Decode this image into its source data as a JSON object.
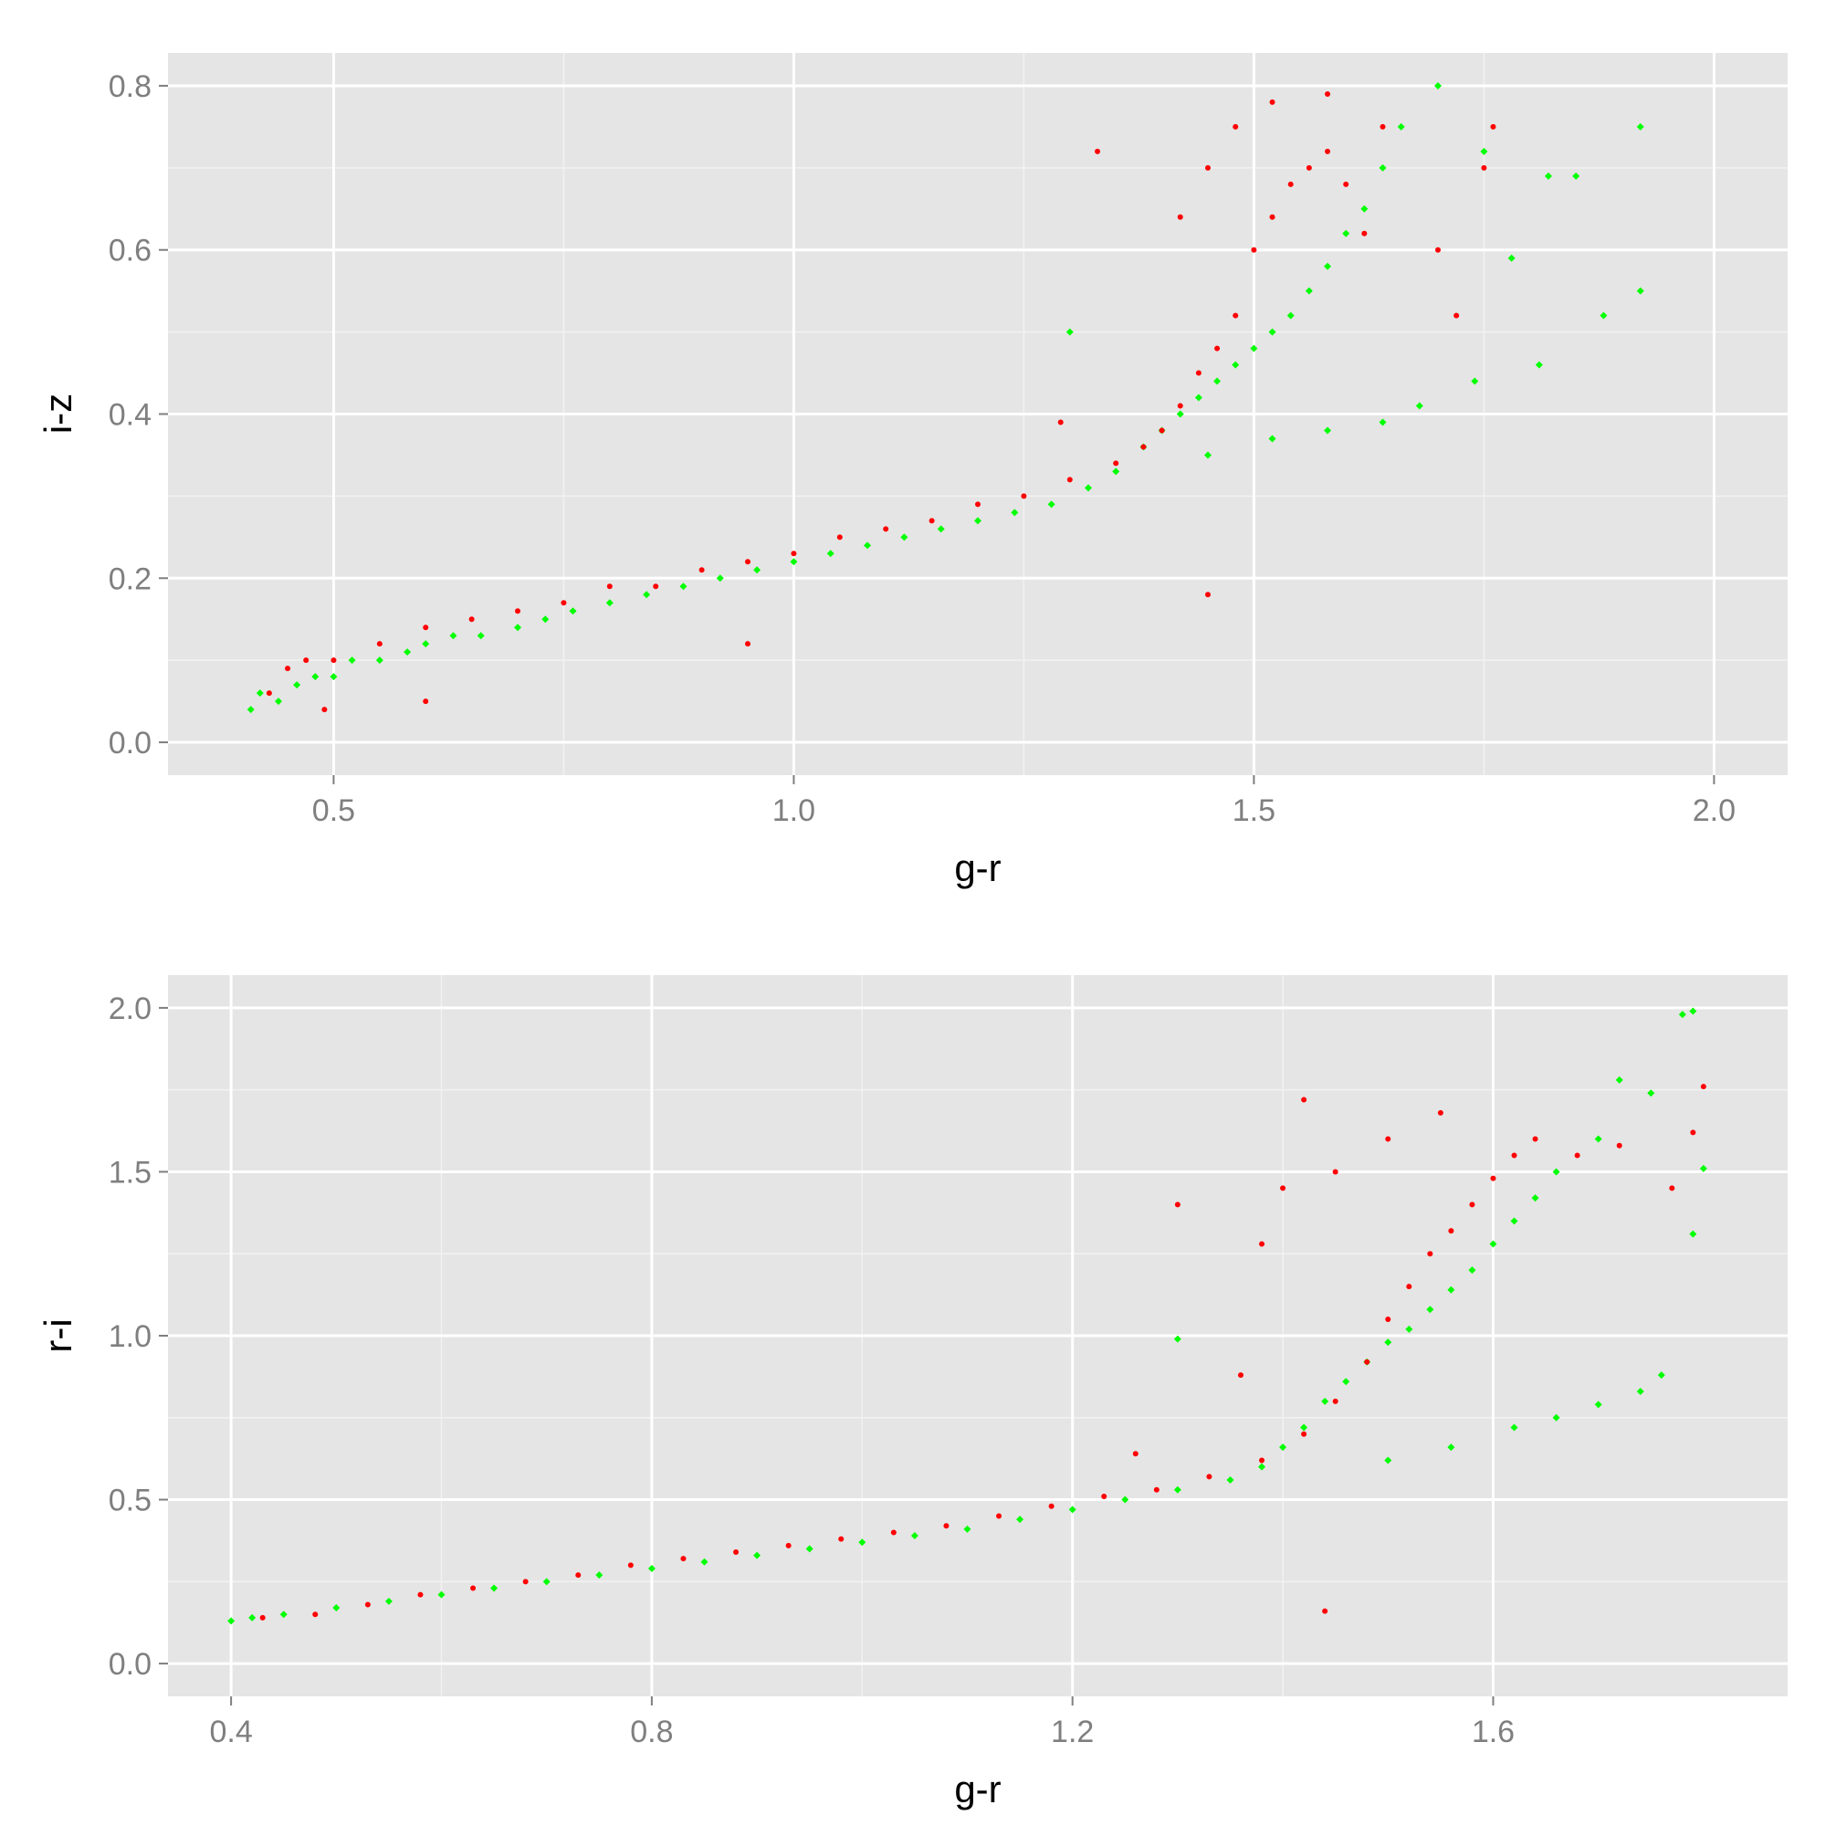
{
  "chart_data": [
    {
      "type": "scatter",
      "xlabel": "g-r",
      "ylabel": "i-z",
      "xlim": [
        0.32,
        2.08
      ],
      "ylim": [
        -0.04,
        0.84
      ],
      "xticks": [
        0.5,
        1.0,
        1.5,
        2.0
      ],
      "xtick_labels": [
        "0.5",
        "1.0",
        "1.5",
        "2.0"
      ],
      "yticks": [
        0.0,
        0.2,
        0.4,
        0.6,
        0.8
      ],
      "ytick_labels": [
        "0.0",
        "0.2",
        "0.4",
        "0.6",
        "0.8"
      ],
      "grid": true,
      "background": "#e5e5e5",
      "series": [
        {
          "color": "#00ff00",
          "marker": "diamond",
          "points": [
            [
              0.41,
              0.04
            ],
            [
              0.42,
              0.06
            ],
            [
              0.44,
              0.05
            ],
            [
              0.46,
              0.07
            ],
            [
              0.48,
              0.08
            ],
            [
              0.5,
              0.08
            ],
            [
              0.52,
              0.1
            ],
            [
              0.55,
              0.1
            ],
            [
              0.58,
              0.11
            ],
            [
              0.6,
              0.12
            ],
            [
              0.63,
              0.13
            ],
            [
              0.66,
              0.13
            ],
            [
              0.7,
              0.14
            ],
            [
              0.73,
              0.15
            ],
            [
              0.76,
              0.16
            ],
            [
              0.8,
              0.17
            ],
            [
              0.84,
              0.18
            ],
            [
              0.88,
              0.19
            ],
            [
              0.92,
              0.2
            ],
            [
              0.96,
              0.21
            ],
            [
              1.0,
              0.22
            ],
            [
              1.04,
              0.23
            ],
            [
              1.08,
              0.24
            ],
            [
              1.12,
              0.25
            ],
            [
              1.16,
              0.26
            ],
            [
              1.2,
              0.27
            ],
            [
              1.24,
              0.28
            ],
            [
              1.28,
              0.29
            ],
            [
              1.32,
              0.31
            ],
            [
              1.35,
              0.33
            ],
            [
              1.38,
              0.36
            ],
            [
              1.4,
              0.38
            ],
            [
              1.42,
              0.4
            ],
            [
              1.44,
              0.42
            ],
            [
              1.46,
              0.44
            ],
            [
              1.48,
              0.46
            ],
            [
              1.5,
              0.48
            ],
            [
              1.52,
              0.5
            ],
            [
              1.54,
              0.52
            ],
            [
              1.56,
              0.55
            ],
            [
              1.58,
              0.58
            ],
            [
              1.6,
              0.62
            ],
            [
              1.62,
              0.65
            ],
            [
              1.64,
              0.7
            ],
            [
              1.66,
              0.75
            ],
            [
              1.7,
              0.8
            ],
            [
              1.75,
              0.72
            ],
            [
              1.78,
              0.59
            ],
            [
              1.82,
              0.69
            ],
            [
              1.85,
              0.69
            ],
            [
              1.88,
              0.52
            ],
            [
              1.92,
              0.75
            ],
            [
              1.92,
              0.55
            ],
            [
              1.81,
              0.46
            ],
            [
              1.74,
              0.44
            ],
            [
              1.68,
              0.41
            ],
            [
              1.64,
              0.39
            ],
            [
              1.58,
              0.38
            ],
            [
              1.52,
              0.37
            ],
            [
              1.45,
              0.35
            ],
            [
              1.3,
              0.5
            ]
          ]
        },
        {
          "color": "#ff0000",
          "marker": "circle",
          "points": [
            [
              0.43,
              0.06
            ],
            [
              0.45,
              0.09
            ],
            [
              0.47,
              0.1
            ],
            [
              0.5,
              0.1
            ],
            [
              0.55,
              0.12
            ],
            [
              0.6,
              0.14
            ],
            [
              0.65,
              0.15
            ],
            [
              0.7,
              0.16
            ],
            [
              0.75,
              0.17
            ],
            [
              0.8,
              0.19
            ],
            [
              0.85,
              0.19
            ],
            [
              0.9,
              0.21
            ],
            [
              0.95,
              0.22
            ],
            [
              1.0,
              0.23
            ],
            [
              1.05,
              0.25
            ],
            [
              1.1,
              0.26
            ],
            [
              1.15,
              0.27
            ],
            [
              1.2,
              0.29
            ],
            [
              1.25,
              0.3
            ],
            [
              1.3,
              0.32
            ],
            [
              1.35,
              0.34
            ],
            [
              1.38,
              0.36
            ],
            [
              1.4,
              0.38
            ],
            [
              1.42,
              0.41
            ],
            [
              1.44,
              0.45
            ],
            [
              1.46,
              0.48
            ],
            [
              1.48,
              0.52
            ],
            [
              1.5,
              0.6
            ],
            [
              1.52,
              0.64
            ],
            [
              1.54,
              0.68
            ],
            [
              1.56,
              0.7
            ],
            [
              1.58,
              0.72
            ],
            [
              1.6,
              0.68
            ],
            [
              1.62,
              0.62
            ],
            [
              1.64,
              0.75
            ],
            [
              1.58,
              0.79
            ],
            [
              1.52,
              0.78
            ],
            [
              1.48,
              0.75
            ],
            [
              1.45,
              0.7
            ],
            [
              1.42,
              0.64
            ],
            [
              1.33,
              0.72
            ],
            [
              1.29,
              0.39
            ],
            [
              1.45,
              0.18
            ],
            [
              0.95,
              0.12
            ],
            [
              0.6,
              0.05
            ],
            [
              0.49,
              0.04
            ],
            [
              1.7,
              0.6
            ],
            [
              1.72,
              0.52
            ],
            [
              1.76,
              0.75
            ],
            [
              1.75,
              0.7
            ]
          ]
        }
      ]
    },
    {
      "type": "scatter",
      "xlabel": "g-r",
      "ylabel": "r-i",
      "xlim": [
        0.34,
        1.88
      ],
      "ylim": [
        -0.1,
        2.1
      ],
      "xticks": [
        0.4,
        0.8,
        1.2,
        1.6
      ],
      "xtick_labels": [
        "0.4",
        "0.8",
        "1.2",
        "1.6"
      ],
      "yticks": [
        0.0,
        0.5,
        1.0,
        1.5,
        2.0
      ],
      "ytick_labels": [
        "0.0",
        "0.5",
        "1.0",
        "1.5",
        "2.0"
      ],
      "grid": true,
      "background": "#e5e5e5",
      "series": [
        {
          "color": "#00ff00",
          "marker": "diamond",
          "points": [
            [
              0.4,
              0.13
            ],
            [
              0.42,
              0.14
            ],
            [
              0.45,
              0.15
            ],
            [
              0.5,
              0.17
            ],
            [
              0.55,
              0.19
            ],
            [
              0.6,
              0.21
            ],
            [
              0.65,
              0.23
            ],
            [
              0.7,
              0.25
            ],
            [
              0.75,
              0.27
            ],
            [
              0.8,
              0.29
            ],
            [
              0.85,
              0.31
            ],
            [
              0.9,
              0.33
            ],
            [
              0.95,
              0.35
            ],
            [
              1.0,
              0.37
            ],
            [
              1.05,
              0.39
            ],
            [
              1.1,
              0.41
            ],
            [
              1.15,
              0.44
            ],
            [
              1.2,
              0.47
            ],
            [
              1.25,
              0.5
            ],
            [
              1.3,
              0.53
            ],
            [
              1.35,
              0.56
            ],
            [
              1.38,
              0.6
            ],
            [
              1.4,
              0.66
            ],
            [
              1.42,
              0.72
            ],
            [
              1.44,
              0.8
            ],
            [
              1.46,
              0.86
            ],
            [
              1.48,
              0.92
            ],
            [
              1.5,
              0.98
            ],
            [
              1.52,
              1.02
            ],
            [
              1.54,
              1.08
            ],
            [
              1.56,
              1.14
            ],
            [
              1.58,
              1.2
            ],
            [
              1.6,
              1.28
            ],
            [
              1.62,
              1.35
            ],
            [
              1.64,
              1.42
            ],
            [
              1.66,
              1.5
            ],
            [
              1.7,
              1.6
            ],
            [
              1.72,
              1.78
            ],
            [
              1.75,
              1.74
            ],
            [
              1.78,
              1.98
            ],
            [
              1.79,
              1.99
            ],
            [
              1.8,
              1.51
            ],
            [
              1.79,
              1.31
            ],
            [
              1.76,
              0.88
            ],
            [
              1.74,
              0.83
            ],
            [
              1.7,
              0.79
            ],
            [
              1.66,
              0.75
            ],
            [
              1.62,
              0.72
            ],
            [
              1.56,
              0.66
            ],
            [
              1.5,
              0.62
            ],
            [
              1.3,
              0.99
            ]
          ]
        },
        {
          "color": "#ff0000",
          "marker": "circle",
          "points": [
            [
              0.43,
              0.14
            ],
            [
              0.48,
              0.15
            ],
            [
              0.53,
              0.18
            ],
            [
              0.58,
              0.21
            ],
            [
              0.63,
              0.23
            ],
            [
              0.68,
              0.25
            ],
            [
              0.73,
              0.27
            ],
            [
              0.78,
              0.3
            ],
            [
              0.83,
              0.32
            ],
            [
              0.88,
              0.34
            ],
            [
              0.93,
              0.36
            ],
            [
              0.98,
              0.38
            ],
            [
              1.03,
              0.4
            ],
            [
              1.08,
              0.42
            ],
            [
              1.13,
              0.45
            ],
            [
              1.18,
              0.48
            ],
            [
              1.23,
              0.51
            ],
            [
              1.28,
              0.53
            ],
            [
              1.33,
              0.57
            ],
            [
              1.38,
              0.62
            ],
            [
              1.42,
              0.7
            ],
            [
              1.45,
              0.8
            ],
            [
              1.48,
              0.92
            ],
            [
              1.5,
              1.05
            ],
            [
              1.52,
              1.15
            ],
            [
              1.54,
              1.25
            ],
            [
              1.56,
              1.32
            ],
            [
              1.58,
              1.4
            ],
            [
              1.6,
              1.48
            ],
            [
              1.62,
              1.55
            ],
            [
              1.64,
              1.6
            ],
            [
              1.55,
              1.68
            ],
            [
              1.5,
              1.6
            ],
            [
              1.45,
              1.5
            ],
            [
              1.42,
              1.72
            ],
            [
              1.4,
              1.45
            ],
            [
              1.38,
              1.28
            ],
            [
              1.3,
              1.4
            ],
            [
              1.44,
              0.16
            ],
            [
              1.77,
              1.45
            ],
            [
              1.79,
              1.62
            ],
            [
              1.8,
              1.76
            ],
            [
              1.72,
              1.58
            ],
            [
              1.68,
              1.55
            ],
            [
              1.36,
              0.88
            ],
            [
              1.26,
              0.64
            ]
          ]
        }
      ]
    }
  ]
}
